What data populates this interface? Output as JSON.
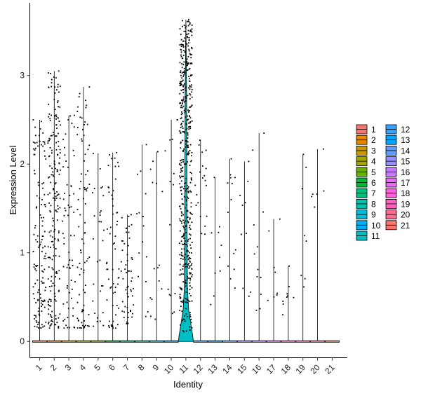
{
  "chart_data": {
    "type": "violin",
    "xlabel": "Identity",
    "ylabel": "Expression Level",
    "ylim": [
      -0.18,
      3.82
    ],
    "yticks": [
      0,
      1,
      2,
      3
    ],
    "categories": [
      "1",
      "2",
      "3",
      "4",
      "5",
      "6",
      "7",
      "8",
      "9",
      "10",
      "11",
      "12",
      "13",
      "14",
      "15",
      "16",
      "17",
      "18",
      "19",
      "20",
      "21"
    ],
    "colors": [
      "#F8766D",
      "#E58700",
      "#C99800",
      "#A3A500",
      "#6BB100",
      "#00BA38",
      "#00BF7D",
      "#00C0AF",
      "#00BCD8",
      "#00B0F6",
      "#00BFC4",
      "#35A2FF",
      "#00A9FF",
      "#619CFF",
      "#9590FF",
      "#C77CFF",
      "#E76BF3",
      "#FA62DB",
      "#FF62BC",
      "#FF6C91",
      "#F8766D"
    ],
    "max_expression": [
      2.5,
      3.05,
      2.55,
      2.87,
      2.12,
      2.13,
      1.43,
      2.22,
      2.14,
      2.5,
      3.63,
      2.27,
      1.85,
      2.06,
      2.03,
      2.35,
      1.38,
      0.85,
      2.11,
      2.17,
      0.0
    ],
    "point_counts": [
      130,
      200,
      65,
      85,
      30,
      60,
      55,
      15,
      15,
      15,
      500,
      20,
      10,
      14,
      10,
      12,
      8,
      9,
      8,
      6,
      0
    ],
    "point_min": [
      0.15,
      0.15,
      0.15,
      0.15,
      0.15,
      0.15,
      0.2,
      0.2,
      0.25,
      0.3,
      0.1,
      1.2,
      0.35,
      0.6,
      0.5,
      0.35,
      0.4,
      0.3,
      0.25,
      1.5,
      0.0
    ],
    "legend": {
      "columns": [
        [
          "1",
          "2",
          "3",
          "4",
          "5",
          "6",
          "7",
          "8",
          "9",
          "10",
          "11"
        ],
        [
          "12",
          "13",
          "14",
          "15",
          "16",
          "17",
          "18",
          "19",
          "20",
          "21"
        ]
      ]
    }
  }
}
